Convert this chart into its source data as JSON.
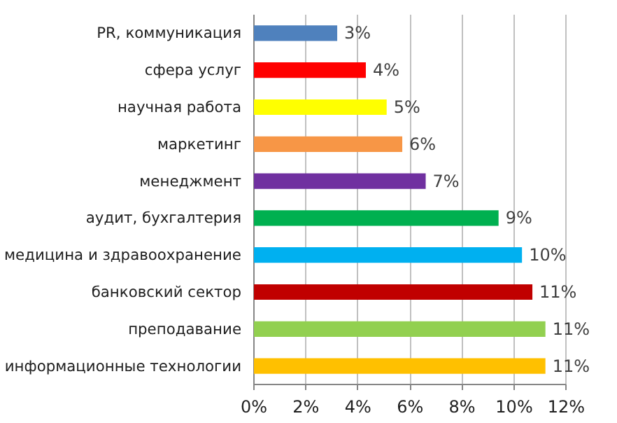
{
  "chart_data": {
    "type": "bar",
    "orientation": "horizontal",
    "categories": [
      "PR, коммуникация",
      "сфера услуг",
      "научная работа",
      "маркетинг",
      "менеджмент",
      "аудит, бухгалтерия",
      "медицина и здравоохранение",
      "банковский сектор",
      "преподавание",
      "информационные технологии"
    ],
    "values": [
      3.2,
      4.3,
      5.1,
      5.7,
      6.6,
      9.4,
      10.3,
      10.7,
      11.2,
      11.2
    ],
    "value_labels": [
      "3%",
      "4%",
      "5%",
      "6%",
      "7%",
      "9%",
      "10%",
      "11%",
      "11%",
      "11%"
    ],
    "colors": [
      "#4f81bd",
      "#ff0000",
      "#ffff00",
      "#f79646",
      "#7030a0",
      "#00b050",
      "#00b0f0",
      "#c00000",
      "#92d050",
      "#ffc000"
    ],
    "xlim": [
      0,
      12
    ],
    "xticks": [
      {
        "value": 0,
        "label": "0%"
      },
      {
        "value": 2,
        "label": "2%"
      },
      {
        "value": 4,
        "label": "4%"
      },
      {
        "value": 6,
        "label": "6%"
      },
      {
        "value": 8,
        "label": "8%"
      },
      {
        "value": 10,
        "label": "10%"
      },
      {
        "value": 12,
        "label": "12%"
      }
    ],
    "grid": "x"
  }
}
